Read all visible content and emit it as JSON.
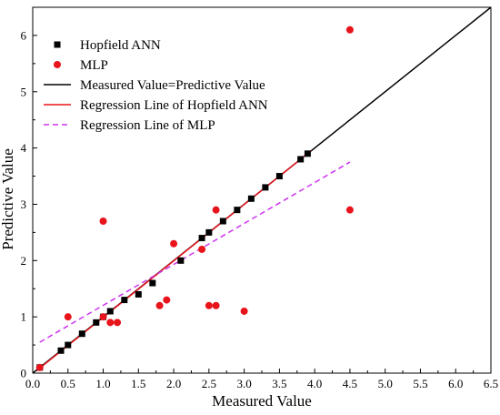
{
  "chart_data": {
    "type": "scatter",
    "xlabel": "Measured Value",
    "ylabel": "Predictive Value",
    "xlim": [
      0,
      6.5
    ],
    "ylim": [
      0,
      6.5
    ],
    "x_ticks": [
      "0.0",
      "0.5",
      "1.0",
      "1.5",
      "2.0",
      "2.5",
      "3.0",
      "3.5",
      "4.0",
      "4.5",
      "5.0",
      "5.5",
      "6.0",
      "6.5"
    ],
    "y_ticks": [
      "0",
      "1",
      "2",
      "3",
      "4",
      "5",
      "6"
    ],
    "grid": false,
    "legend_position": "top-left",
    "series": [
      {
        "name": "Hopfield ANN",
        "kind": "scatter",
        "marker": "square",
        "color": "#000000",
        "points": [
          [
            0.1,
            0.1
          ],
          [
            0.4,
            0.4
          ],
          [
            0.5,
            0.5
          ],
          [
            0.7,
            0.7
          ],
          [
            0.9,
            0.9
          ],
          [
            1.0,
            1.0
          ],
          [
            1.1,
            1.1
          ],
          [
            1.3,
            1.3
          ],
          [
            1.5,
            1.4
          ],
          [
            1.7,
            1.6
          ],
          [
            2.1,
            2.0
          ],
          [
            2.4,
            2.4
          ],
          [
            2.5,
            2.5
          ],
          [
            2.7,
            2.7
          ],
          [
            2.9,
            2.9
          ],
          [
            3.1,
            3.1
          ],
          [
            3.3,
            3.3
          ],
          [
            3.5,
            3.5
          ],
          [
            3.8,
            3.8
          ],
          [
            3.9,
            3.9
          ]
        ]
      },
      {
        "name": "MLP",
        "kind": "scatter",
        "marker": "circle",
        "color": "#e8141c",
        "points": [
          [
            0.1,
            0.1
          ],
          [
            0.5,
            1.0
          ],
          [
            1.0,
            2.7
          ],
          [
            1.0,
            1.0
          ],
          [
            1.1,
            0.9
          ],
          [
            1.2,
            0.9
          ],
          [
            1.8,
            1.2
          ],
          [
            1.9,
            1.3
          ],
          [
            2.0,
            2.3
          ],
          [
            2.4,
            2.2
          ],
          [
            2.5,
            1.2
          ],
          [
            2.6,
            1.2
          ],
          [
            2.6,
            2.9
          ],
          [
            3.0,
            1.1
          ],
          [
            4.5,
            6.1
          ],
          [
            4.5,
            2.9
          ]
        ]
      },
      {
        "name": "Measured Value=Predictive Value",
        "kind": "line",
        "style": "solid",
        "color": "#000000",
        "points": [
          [
            0,
            0
          ],
          [
            6.5,
            6.5
          ]
        ]
      },
      {
        "name": "Regression Line of Hopfield ANN",
        "kind": "line",
        "style": "solid",
        "color": "#e8141c",
        "points": [
          [
            0.05,
            0.04
          ],
          [
            3.95,
            3.95
          ]
        ]
      },
      {
        "name": "Regression Line of MLP",
        "kind": "line",
        "style": "dashed",
        "color": "#cc33ee",
        "points": [
          [
            0.1,
            0.55
          ],
          [
            4.5,
            3.75
          ]
        ]
      }
    ]
  }
}
